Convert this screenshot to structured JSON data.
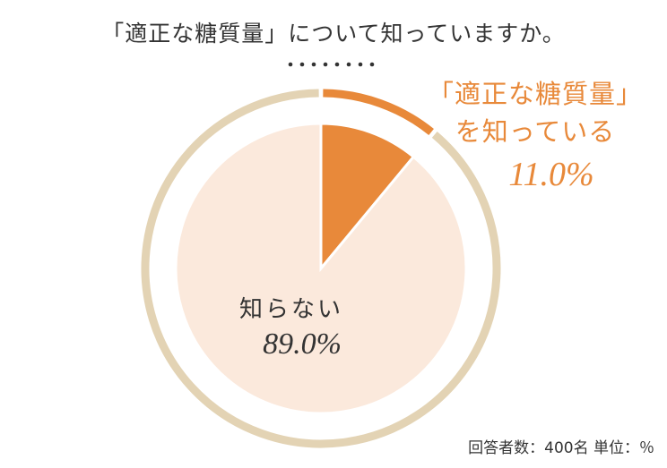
{
  "chart_data": {
    "type": "pie",
    "title": "「適正な糖質量」について知っていますか。",
    "categories": [
      "「適正な糖質量」を知っている",
      "知らない"
    ],
    "values": [
      11.0,
      89.0
    ],
    "value_labels": [
      "11.0%",
      "89.0%"
    ],
    "colors": [
      "#e8893a",
      "#fbe9dc"
    ],
    "ring_colors": [
      "#e8893a",
      "#e3d3b4"
    ],
    "note": "回答者数：400名 単位：％"
  }
}
